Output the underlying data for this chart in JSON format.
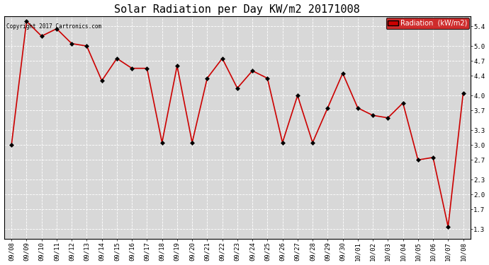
{
  "title": "Solar Radiation per Day KW/m2 20171008",
  "copyright_text": "Copyright 2017 Cartronics.com",
  "legend_label": "Radiation  (kW/m2)",
  "x_labels": [
    "09/08",
    "09/09",
    "09/10",
    "09/11",
    "09/12",
    "09/13",
    "09/14",
    "09/15",
    "09/16",
    "09/17",
    "09/18",
    "09/19",
    "09/20",
    "09/21",
    "09/22",
    "09/23",
    "09/24",
    "09/25",
    "09/26",
    "09/27",
    "09/28",
    "09/29",
    "09/30",
    "10/01",
    "10/02",
    "10/03",
    "10/04",
    "10/05",
    "10/06",
    "10/07",
    "10/08"
  ],
  "y_values": [
    3.0,
    5.5,
    5.2,
    5.35,
    5.05,
    5.0,
    4.3,
    4.75,
    4.55,
    4.55,
    3.05,
    4.6,
    3.05,
    4.35,
    4.75,
    4.15,
    4.5,
    4.35,
    3.05,
    4.0,
    3.05,
    3.75,
    4.45,
    3.75,
    3.6,
    3.55,
    3.85,
    2.7,
    2.75,
    1.35,
    4.05
  ],
  "line_color": "#cc0000",
  "marker_color": "#000000",
  "bg_color": "#ffffff",
  "plot_bg_color": "#d8d8d8",
  "grid_color": "#ffffff",
  "ylim": [
    1.1,
    5.6
  ],
  "yticks": [
    1.3,
    1.7,
    2.0,
    2.3,
    2.7,
    3.0,
    3.3,
    3.7,
    4.0,
    4.4,
    4.7,
    5.0,
    5.4
  ],
  "title_fontsize": 11,
  "tick_fontsize": 6.5,
  "legend_bg": "#cc0000",
  "legend_text_color": "#ffffff"
}
